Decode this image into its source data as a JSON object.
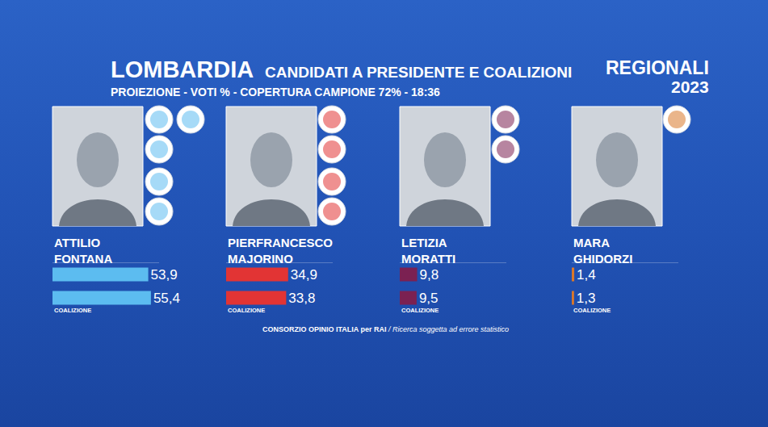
{
  "header": {
    "title": "LOMBARDIA",
    "subtitle": "CANDIDATI A PRESIDENTE E COALIZIONI",
    "info": "PROIEZIONE - VOTI % - COPERTURA CAMPIONE 72% - 18:36",
    "badge": [
      "REGIONALI",
      "2023"
    ]
  },
  "footer": {
    "source": "CONSORZIO OPINIO ITALIA per RAI",
    "note": "/ Ricerca soggetta ad errore statistico"
  },
  "chart_data": [
    {
      "type": "bar",
      "orientation": "horizontal",
      "title": "ATTILIO FONTANA",
      "categories": [
        null,
        "COALIZIONE"
      ],
      "values": [
        53.9,
        55.4
      ],
      "value_labels": [
        "53,9",
        "55,4"
      ],
      "data_labels": true,
      "color": "#5cbcf0",
      "xlim": [
        0,
        60
      ],
      "xticks": [],
      "tick_labels": false,
      "grid": false
    },
    {
      "type": "bar",
      "orientation": "horizontal",
      "title": "PIERFRANCESCO MAJORINO",
      "categories": [
        null,
        "COALIZIONE"
      ],
      "values": [
        34.9,
        33.8
      ],
      "value_labels": [
        "34,9",
        "33,8"
      ],
      "data_labels": true,
      "color": "#e23434",
      "xlim": [
        0,
        60
      ],
      "xticks": [],
      "tick_labels": false,
      "grid": false
    },
    {
      "type": "bar",
      "orientation": "horizontal",
      "title": "LETIZIA MORATTI",
      "categories": [
        null,
        "COALIZIONE"
      ],
      "values": [
        9.8,
        9.5
      ],
      "value_labels": [
        "9,8",
        "9,5"
      ],
      "data_labels": true,
      "color": "#7b2152",
      "xlim": [
        0,
        60
      ],
      "xticks": [],
      "tick_labels": false,
      "grid": false
    },
    {
      "type": "bar",
      "orientation": "horizontal",
      "title": "MARA GHIDORZI",
      "categories": [
        null,
        "COALIZIONE"
      ],
      "values": [
        1.4,
        1.3
      ],
      "value_labels": [
        "1,4",
        "1,3"
      ],
      "data_labels": true,
      "color": "#d9782a",
      "xlim": [
        0,
        60
      ],
      "xticks": [],
      "tick_labels": false,
      "grid": false
    }
  ]
}
